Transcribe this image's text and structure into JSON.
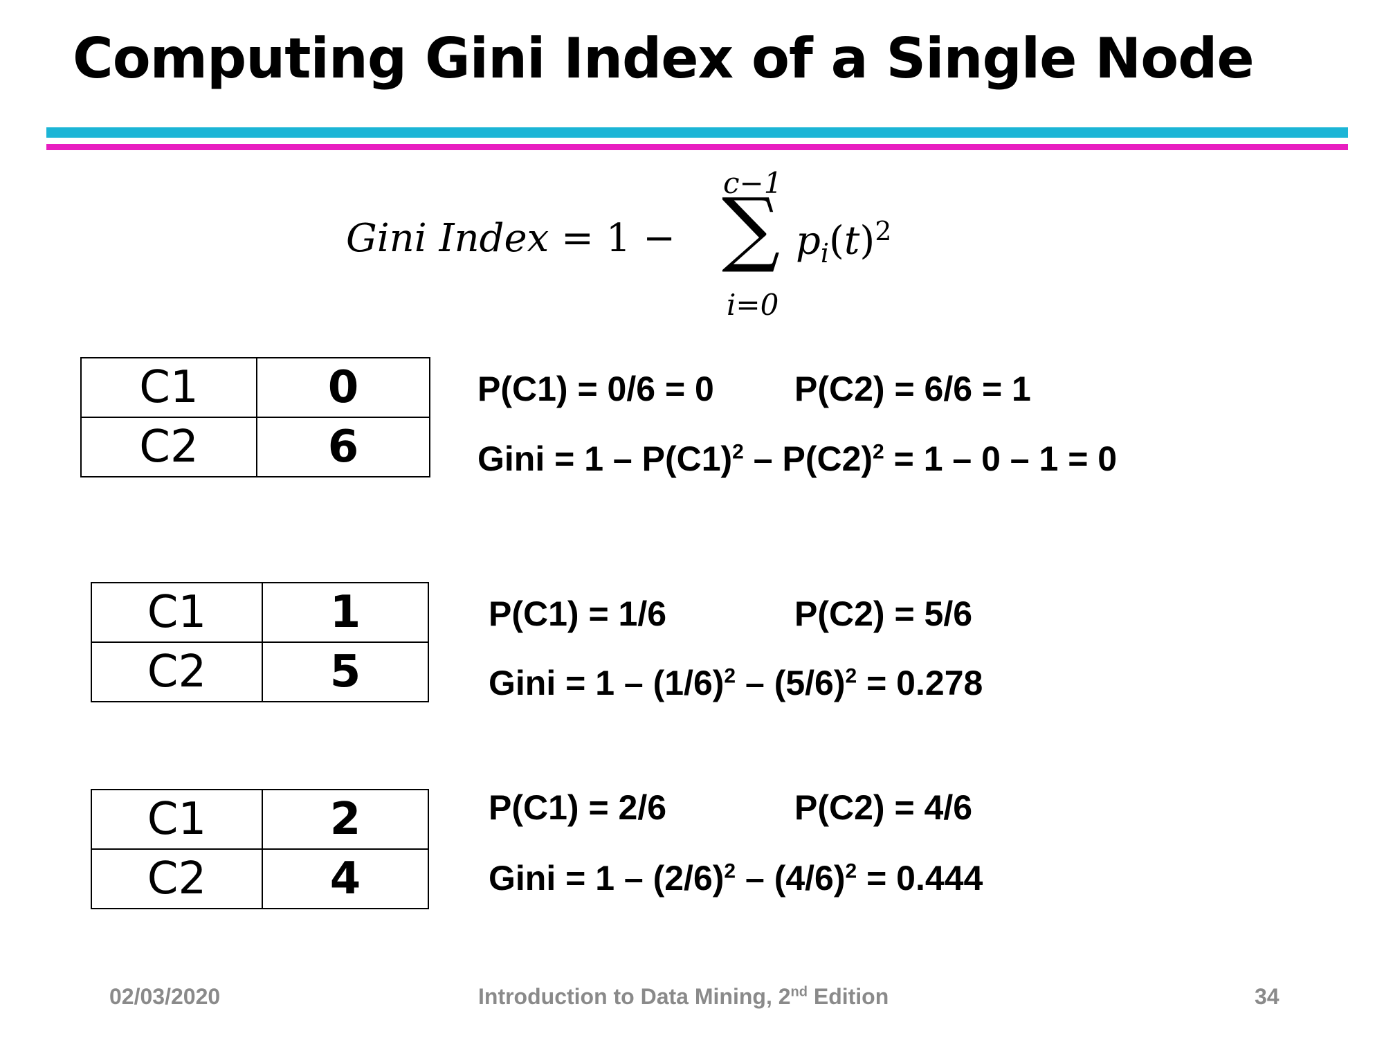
{
  "title": "Computing Gini Index of a Single Node",
  "formula": {
    "lhs_word1": "Gini",
    "lhs_word2": "Index",
    "equals_one_minus": " = 1 −",
    "sum_upper": "c−1",
    "sum_symbol": "∑",
    "sum_lower": "i=0",
    "term_p": "p",
    "term_sub": "i",
    "term_arg_open": "(",
    "term_arg": "t",
    "term_arg_close": ")",
    "term_sup": "2"
  },
  "examples": [
    {
      "table": [
        {
          "class": "C1",
          "count": "0"
        },
        {
          "class": "C2",
          "count": "6"
        }
      ],
      "p_c1": "P(C1) = 0/6 = 0",
      "p_c2": "P(C2) = 6/6 = 1",
      "gini": {
        "a": "Gini = 1 – P(C1)",
        "b": "2",
        "c": "– P(C2)",
        "d": "2",
        "e": " = 1 – 0 – 1 = 0"
      }
    },
    {
      "table": [
        {
          "class": "C1",
          "count": "1"
        },
        {
          "class": "C2",
          "count": "5"
        }
      ],
      "p_c1": "P(C1) = 1/6",
      "p_c2": "P(C2) = 5/6",
      "gini": {
        "a": "Gini = 1 – (1/6)",
        "b": "2",
        "c": "– (5/6)",
        "d": "2",
        "e": " = 0.278"
      }
    },
    {
      "table": [
        {
          "class": "C1",
          "count": "2"
        },
        {
          "class": "C2",
          "count": "4"
        }
      ],
      "p_c1": "P(C1) = 2/6",
      "p_c2": "P(C2) = 4/6",
      "gini": {
        "a": "Gini = 1 – (2/6)",
        "b": "2",
        "c": "– (4/6)",
        "d": "2",
        "e": " = 0.444"
      }
    }
  ],
  "footer": {
    "date": "02/03/2020",
    "book_a": "Introduction to Data Mining, 2",
    "book_sup": "nd",
    "book_b": " Edition",
    "page": "34"
  },
  "colors": {
    "rule_top": "#1cb5d6",
    "rule_bottom": "#e81ec0",
    "footer_text": "#8a8a8a"
  }
}
